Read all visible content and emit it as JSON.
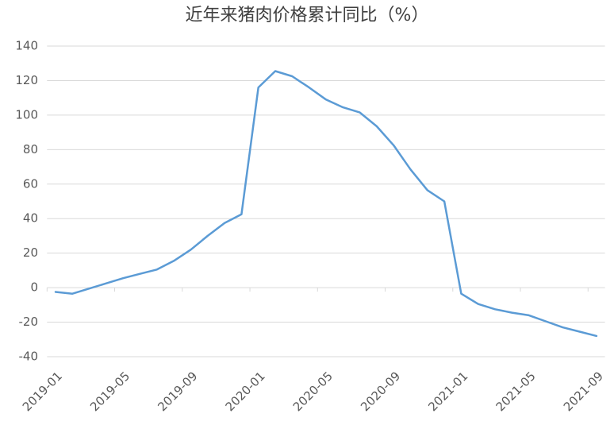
{
  "chart_data": {
    "type": "line",
    "title": "近年来猪肉价格累计同比（%）",
    "categories": [
      "2019-01",
      null,
      null,
      null,
      "2019-05",
      null,
      null,
      null,
      "2019-09",
      null,
      null,
      null,
      "2020-01",
      null,
      null,
      null,
      "2020-05",
      null,
      null,
      null,
      "2020-09",
      null,
      null,
      null,
      "2021-01",
      null,
      null,
      null,
      "2021-05",
      null,
      null,
      null,
      "2021-09"
    ],
    "series": [
      {
        "name": "猪肉价格累计同比",
        "color": "#5b9bd5",
        "values": [
          -2.5,
          -3.5,
          -0.5,
          2.5,
          5.5,
          8,
          10.5,
          15.5,
          22,
          30,
          37.5,
          42.5,
          116,
          125.5,
          122.5,
          116,
          109,
          104.5,
          101.5,
          93.5,
          82.5,
          68.5,
          56.5,
          50,
          -3.5,
          -9.5,
          -12.5,
          -14.5,
          -16,
          -19.5,
          -23,
          -25.5,
          -28
        ]
      }
    ],
    "ylim": [
      -40,
      140
    ],
    "yticks": [
      -40,
      -20,
      0,
      20,
      40,
      60,
      80,
      100,
      120,
      140
    ],
    "grid": true
  }
}
